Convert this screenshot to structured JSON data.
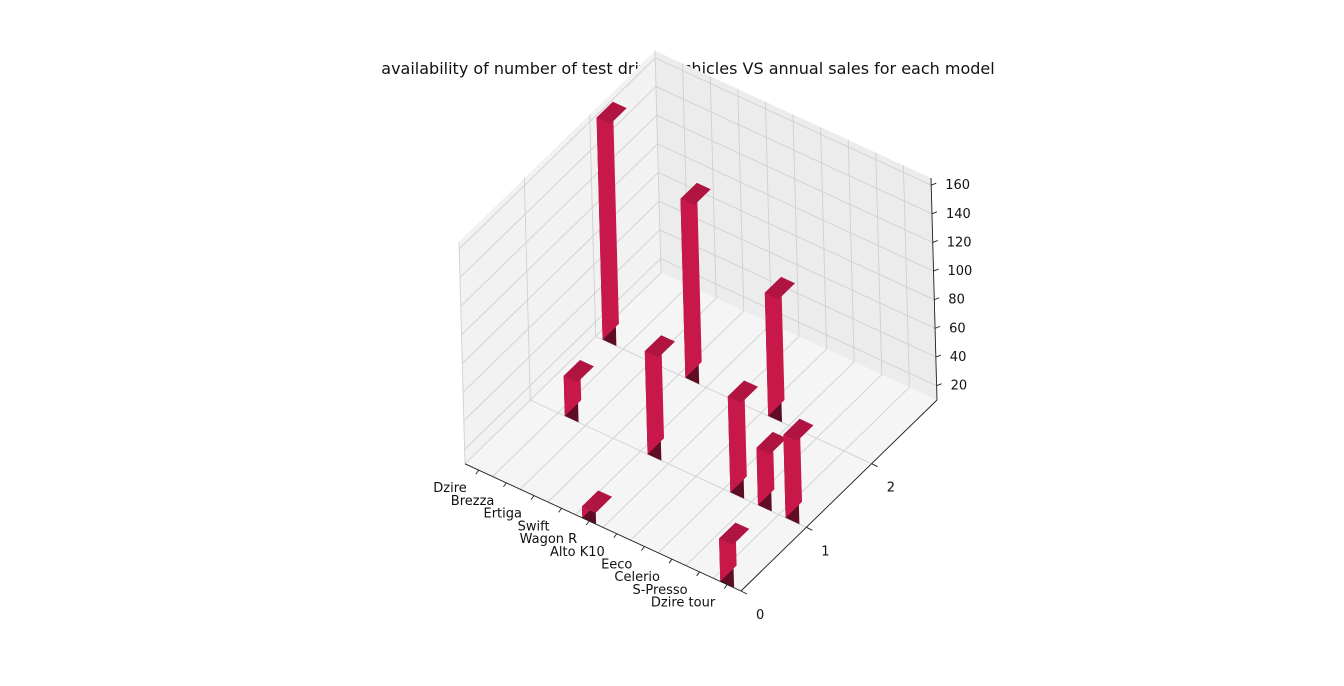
{
  "chart_data": {
    "type": "bar3d",
    "title": "availability of number of test drive vechicles VS annual sales for each model",
    "x_tick_labels": [
      "Dzire",
      "Brezza",
      "Ertiga",
      "Swift",
      "Wagon R",
      "Alto K10",
      "Eeco",
      "Celerio",
      "S-Presso",
      "Dzire tour"
    ],
    "y_ticks": [
      0,
      1,
      2
    ],
    "z_ticks": [
      20,
      40,
      60,
      80,
      100,
      120,
      140,
      160
    ],
    "xlim": [
      0,
      10
    ],
    "ylim": [
      0,
      3
    ],
    "zlim": [
      10,
      165
    ],
    "grid": true,
    "bar_color": "#c8184a",
    "bars": [
      {
        "x": "Dzire",
        "y": 2,
        "value": 165
      },
      {
        "x": "Brezza",
        "y": 1,
        "value": 38
      },
      {
        "x": "Swift",
        "y": 2,
        "value": 135
      },
      {
        "x": "Wagon R",
        "y": 1,
        "value": 82
      },
      {
        "x": "Wagon R",
        "y": 0,
        "value": 18
      },
      {
        "x": "Eeco",
        "y": 2,
        "value": 96
      },
      {
        "x": "Celerio",
        "y": 1,
        "value": 77
      },
      {
        "x": "S-Presso",
        "y": 1,
        "value": 50
      },
      {
        "x": "Dzire tour",
        "y": 1,
        "value": 68
      },
      {
        "x": "Dzire tour",
        "y": 0,
        "value": 40
      }
    ]
  }
}
